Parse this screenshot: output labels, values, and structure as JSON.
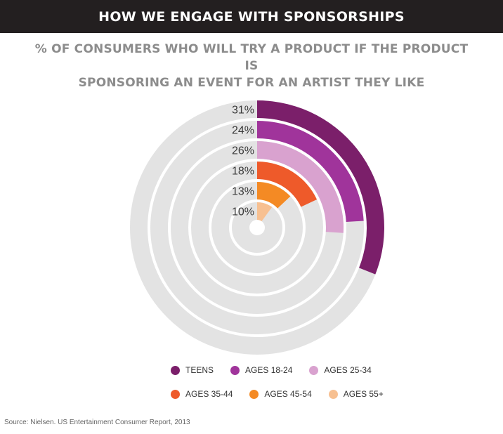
{
  "header": {
    "title": "HOW WE ENGAGE WITH SPONSORSHIPS"
  },
  "subtitle_lines": [
    "% OF CONSUMERS WHO WILL TRY A PRODUCT IF THE PRODUCT IS",
    "SPONSORING AN EVENT FOR AN ARTIST THEY LIKE"
  ],
  "chart_data": {
    "type": "radial-bar",
    "title": "% OF CONSUMERS WHO WILL TRY A PRODUCT IF THE PRODUCT IS SPONSORING AN EVENT FOR AN ARTIST THEY LIKE",
    "max": 100,
    "unit": "%",
    "categories": [
      "TEENS",
      "AGES 18-24",
      "AGES 25-34",
      "AGES 35-44",
      "AGES 45-54",
      "AGES 55+"
    ],
    "values": [
      31,
      24,
      26,
      18,
      13,
      10
    ],
    "labels": [
      "31%",
      "24%",
      "26%",
      "18%",
      "13%",
      "10%"
    ],
    "colors": [
      "#7b1f6a",
      "#a0349b",
      "#d9a2cf",
      "#ee5a2a",
      "#f48a24",
      "#f7c091"
    ],
    "track_color": "#e3e3e3",
    "legend_position": "bottom"
  },
  "legend": {
    "row1": [
      {
        "label": "TEENS",
        "color": "#7b1f6a"
      },
      {
        "label": "AGES 18-24",
        "color": "#a0349b"
      },
      {
        "label": "AGES 25-34",
        "color": "#d9a2cf"
      }
    ],
    "row2": [
      {
        "label": "AGES 35-44",
        "color": "#ee5a2a"
      },
      {
        "label": "AGES 45-54",
        "color": "#f48a24"
      },
      {
        "label": "AGES 55+",
        "color": "#f7c091"
      }
    ]
  },
  "source": "Source: Nielsen. US Entertainment Consumer Report, 2013"
}
